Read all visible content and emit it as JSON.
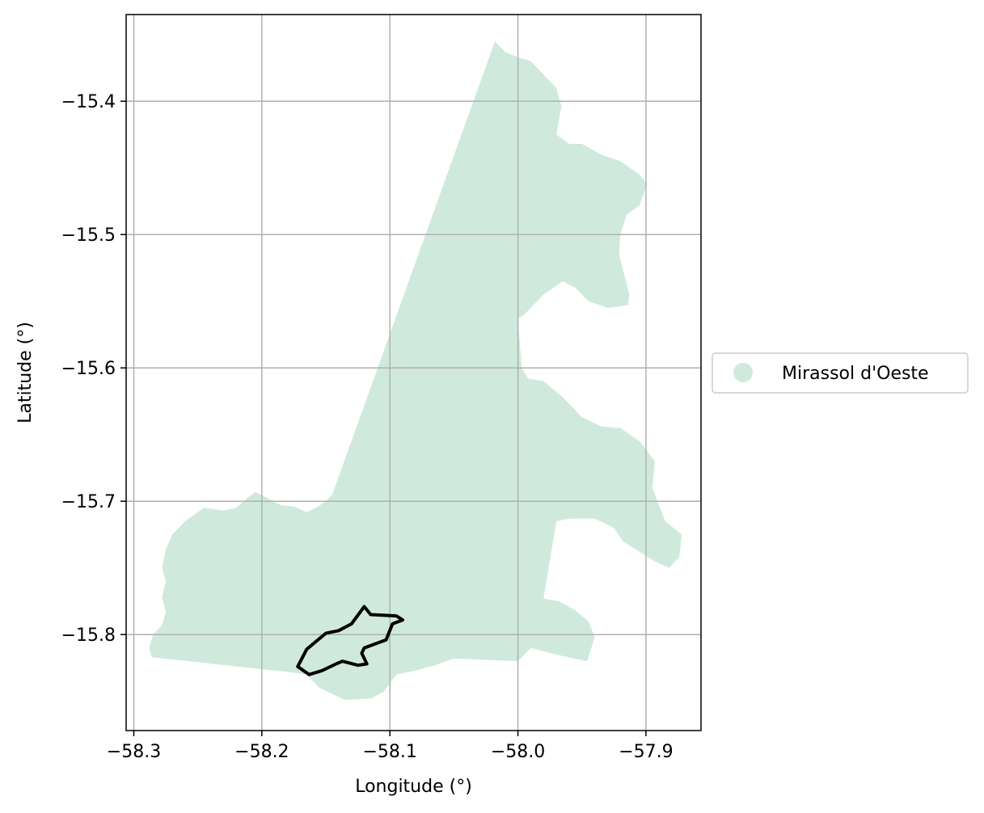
{
  "chart_data": {
    "type": "map",
    "title": "",
    "xlabel": "Longitude (°)",
    "ylabel": "Latitude (°)",
    "xlim": [
      -58.306,
      -57.857
    ],
    "ylim": [
      -15.872,
      -15.335
    ],
    "x_ticks": [
      -58.3,
      -58.2,
      -58.1,
      -58.0,
      -57.9
    ],
    "x_tick_labels": [
      "−58.3",
      "−58.2",
      "−58.1",
      "−58.0",
      "−57.9"
    ],
    "y_ticks": [
      -15.4,
      -15.5,
      -15.6,
      -15.7,
      -15.8
    ],
    "y_tick_labels": [
      "−15.4",
      "−15.5",
      "−15.6",
      "−15.7",
      "−15.8"
    ],
    "grid": true,
    "legend": {
      "placement": "center-left outside",
      "entries": [
        {
          "label": "Mirassol d'Oeste",
          "color": "#cfeadd",
          "marker": "circle"
        }
      ]
    },
    "region": {
      "name": "Mirassol d'Oeste",
      "fill_color": "#cfeadd",
      "boundary": [
        [
          -58.018,
          -15.355
        ],
        [
          -58.01,
          -15.363
        ],
        [
          -58.0,
          -15.367
        ],
        [
          -57.99,
          -15.37
        ],
        [
          -57.98,
          -15.38
        ],
        [
          -57.97,
          -15.39
        ],
        [
          -57.966,
          -15.404
        ],
        [
          -57.97,
          -15.425
        ],
        [
          -57.96,
          -15.432
        ],
        [
          -57.95,
          -15.432
        ],
        [
          -57.935,
          -15.44
        ],
        [
          -57.92,
          -15.445
        ],
        [
          -57.905,
          -15.455
        ],
        [
          -57.899,
          -15.462
        ],
        [
          -57.905,
          -15.478
        ],
        [
          -57.915,
          -15.485
        ],
        [
          -57.92,
          -15.5
        ],
        [
          -57.921,
          -15.515
        ],
        [
          -57.913,
          -15.545
        ],
        [
          -57.914,
          -15.553
        ],
        [
          -57.93,
          -15.555
        ],
        [
          -57.945,
          -15.55
        ],
        [
          -57.955,
          -15.54
        ],
        [
          -57.965,
          -15.535
        ],
        [
          -57.98,
          -15.545
        ],
        [
          -57.995,
          -15.56
        ],
        [
          -58.0,
          -15.563
        ],
        [
          -57.997,
          -15.6
        ],
        [
          -57.992,
          -15.608
        ],
        [
          -57.98,
          -15.61
        ],
        [
          -57.965,
          -15.622
        ],
        [
          -57.95,
          -15.637
        ],
        [
          -57.935,
          -15.644
        ],
        [
          -57.92,
          -15.645
        ],
        [
          -57.905,
          -15.655
        ],
        [
          -57.893,
          -15.67
        ],
        [
          -57.895,
          -15.69
        ],
        [
          -57.885,
          -15.715
        ],
        [
          -57.872,
          -15.725
        ],
        [
          -57.874,
          -15.742
        ],
        [
          -57.882,
          -15.75
        ],
        [
          -57.893,
          -15.745
        ],
        [
          -57.905,
          -15.738
        ],
        [
          -57.918,
          -15.73
        ],
        [
          -57.925,
          -15.72
        ],
        [
          -57.94,
          -15.713
        ],
        [
          -57.96,
          -15.713
        ],
        [
          -57.97,
          -15.715
        ],
        [
          -57.98,
          -15.773
        ],
        [
          -57.968,
          -15.775
        ],
        [
          -57.955,
          -15.782
        ],
        [
          -57.945,
          -15.79
        ],
        [
          -57.94,
          -15.802
        ],
        [
          -57.946,
          -15.82
        ],
        [
          -57.97,
          -15.815
        ],
        [
          -57.99,
          -15.81
        ],
        [
          -58.0,
          -15.82
        ],
        [
          -58.05,
          -15.818
        ],
        [
          -58.065,
          -15.823
        ],
        [
          -58.08,
          -15.827
        ],
        [
          -58.095,
          -15.83
        ],
        [
          -58.105,
          -15.843
        ],
        [
          -58.115,
          -15.848
        ],
        [
          -58.135,
          -15.849
        ],
        [
          -58.155,
          -15.84
        ],
        [
          -58.165,
          -15.83
        ],
        [
          -58.18,
          -15.828
        ],
        [
          -58.286,
          -15.817
        ],
        [
          -58.288,
          -15.81
        ],
        [
          -58.285,
          -15.8
        ],
        [
          -58.278,
          -15.793
        ],
        [
          -58.275,
          -15.783
        ],
        [
          -58.278,
          -15.772
        ],
        [
          -58.275,
          -15.76
        ],
        [
          -58.278,
          -15.75
        ],
        [
          -58.275,
          -15.736
        ],
        [
          -58.27,
          -15.725
        ],
        [
          -58.26,
          -15.715
        ],
        [
          -58.25,
          -15.708
        ],
        [
          -58.245,
          -15.705
        ],
        [
          -58.23,
          -15.707
        ],
        [
          -58.22,
          -15.705
        ],
        [
          -58.212,
          -15.698
        ],
        [
          -58.205,
          -15.693
        ],
        [
          -58.195,
          -15.698
        ],
        [
          -58.185,
          -15.703
        ],
        [
          -58.175,
          -15.704
        ],
        [
          -58.165,
          -15.708
        ],
        [
          -58.158,
          -15.705
        ],
        [
          -58.15,
          -15.7
        ],
        [
          -58.145,
          -15.695
        ]
      ]
    },
    "highlight_outline": {
      "color": "#000000",
      "boundary": [
        [
          -58.12,
          -15.779
        ],
        [
          -58.115,
          -15.785
        ],
        [
          -58.095,
          -15.786
        ],
        [
          -58.09,
          -15.789
        ],
        [
          -58.098,
          -15.792
        ],
        [
          -58.103,
          -15.804
        ],
        [
          -58.12,
          -15.81
        ],
        [
          -58.122,
          -15.814
        ],
        [
          -58.118,
          -15.822
        ],
        [
          -58.125,
          -15.823
        ],
        [
          -58.137,
          -15.82
        ],
        [
          -58.142,
          -15.822
        ],
        [
          -58.153,
          -15.827
        ],
        [
          -58.163,
          -15.83
        ],
        [
          -58.172,
          -15.824
        ],
        [
          -58.165,
          -15.811
        ],
        [
          -58.15,
          -15.799
        ],
        [
          -58.14,
          -15.797
        ],
        [
          -58.13,
          -15.792
        ]
      ]
    }
  }
}
